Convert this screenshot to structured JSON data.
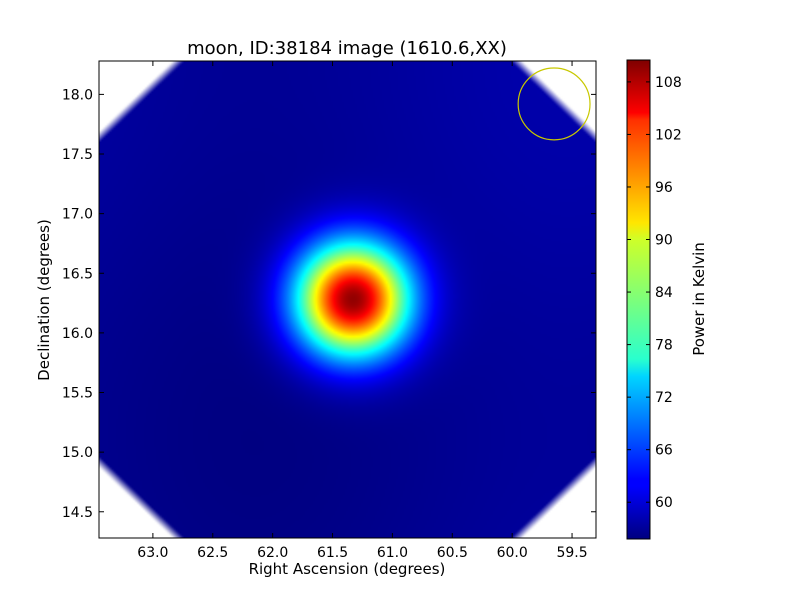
{
  "chart_data": {
    "type": "heatmap",
    "title": "moon, ID:38184 image (1610.6,XX)",
    "xlabel": "Right Ascension (degrees)",
    "ylabel": "Declination (degrees)",
    "xlim": [
      63.45,
      59.3
    ],
    "ylim": [
      14.28,
      18.28
    ],
    "x_inverted": true,
    "xticks": [
      63.0,
      62.5,
      62.0,
      61.5,
      61.0,
      60.5,
      60.0,
      59.5
    ],
    "xtick_labels": [
      "63.0",
      "62.5",
      "62.0",
      "61.5",
      "61.0",
      "60.5",
      "60.0",
      "59.5"
    ],
    "yticks": [
      14.5,
      15.0,
      15.5,
      16.0,
      16.5,
      17.0,
      17.5,
      18.0
    ],
    "ytick_labels": [
      "14.5",
      "15.0",
      "15.5",
      "16.0",
      "16.5",
      "17.0",
      "17.5",
      "18.0"
    ],
    "colorbar": {
      "label": "Power in Kelvin",
      "min": 55.8,
      "max": 110.5,
      "colormap": "jet",
      "ticks": [
        60,
        66,
        72,
        78,
        84,
        90,
        96,
        102,
        108
      ],
      "tick_labels": [
        "60",
        "66",
        "72",
        "78",
        "84",
        "90",
        "96",
        "102",
        "108"
      ]
    },
    "background_level": 57,
    "source": {
      "label": "moon",
      "peak_ra": 61.33,
      "peak_dec": 16.28,
      "peak_value": 110
    },
    "beam_circle": {
      "center_ra": 59.65,
      "center_dec": 17.92,
      "radius_deg": 0.3,
      "color": "#c8c800"
    },
    "masked_corners": [
      "top-left",
      "top-right",
      "bottom-left",
      "bottom-right"
    ]
  }
}
